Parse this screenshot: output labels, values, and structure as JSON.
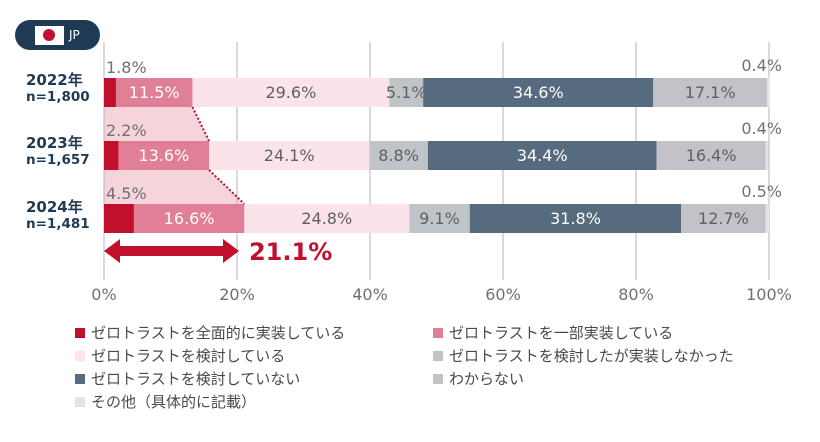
{
  "badge": {
    "label": "JP",
    "icon": "japan-flag-icon"
  },
  "chart_data": {
    "type": "bar",
    "orientation": "horizontal",
    "stacked": true,
    "percent": true,
    "title": "",
    "xlabel": "",
    "ylabel": "",
    "xlim": [
      0,
      100
    ],
    "grid": true,
    "x_ticks": [
      "0%",
      "20%",
      "40%",
      "60%",
      "80%",
      "100%"
    ],
    "categories": [
      {
        "year": "2022年",
        "n": "n=1,800"
      },
      {
        "year": "2023年",
        "n": "n=1,657"
      },
      {
        "year": "2024年",
        "n": "n=1,481"
      }
    ],
    "series": [
      {
        "name": "ゼロトラストを全面的に実装している",
        "color": "#c0102e",
        "values": [
          1.8,
          2.2,
          4.5
        ],
        "label_pos": "above"
      },
      {
        "name": "ゼロトラストを一部実装している",
        "color": "#e07f95",
        "values": [
          11.5,
          13.6,
          16.6
        ],
        "label_pos": "inside",
        "label_color": "#ffffff"
      },
      {
        "name": "ゼロトラストを検討している",
        "color": "#fbe3ea",
        "values": [
          29.6,
          24.1,
          24.8
        ],
        "label_pos": "inside",
        "label_color": "#606060"
      },
      {
        "name": "ゼロトラストを検討したが実装しなかった",
        "color": "#bfc4c9",
        "values": [
          5.1,
          8.8,
          9.1
        ],
        "label_pos": "inside",
        "label_color": "#606060"
      },
      {
        "name": "ゼロトラストを検討していない",
        "color": "#566b7e",
        "values": [
          34.6,
          34.4,
          31.8
        ],
        "label_pos": "inside",
        "label_color": "#ffffff"
      },
      {
        "name": "わからない",
        "color": "#c2c2c8",
        "values": [
          17.1,
          16.4,
          12.7
        ],
        "label_pos": "inside",
        "label_color": "#606060"
      },
      {
        "name": "その他（具体的に記載）",
        "color": "#e4e4e4",
        "values": [
          0.4,
          0.4,
          0.5
        ],
        "label_pos": "above-right"
      }
    ],
    "annotations": [
      {
        "type": "double-arrow",
        "from": 0,
        "to": 21.1,
        "label": "21.1%",
        "color": "#c0102e"
      },
      {
        "type": "trend-band",
        "description": "pink shaded band with dotted connector joining the end of the implemented segments across years"
      }
    ],
    "legend": {
      "position": "bottom",
      "columns": 2
    }
  }
}
